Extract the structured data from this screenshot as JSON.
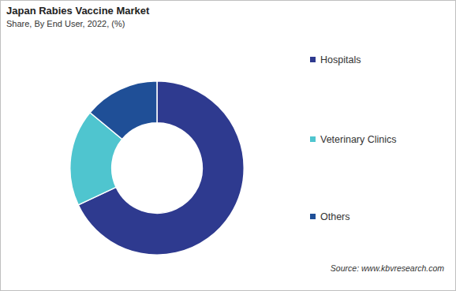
{
  "chart_data": {
    "type": "doughnut",
    "title": "Japan Rabies Vaccine Market",
    "subtitle": "Share, By End User, 2022, (%)",
    "categories": [
      "Hospitals",
      "Veterinary Clinics",
      "Others"
    ],
    "values": [
      68,
      18,
      14
    ],
    "colors": [
      "#2e3a8f",
      "#4fc5cf",
      "#1f4f97"
    ],
    "legend": "right",
    "data_labels": false,
    "source": "Source: www.kbvresearch.com"
  }
}
